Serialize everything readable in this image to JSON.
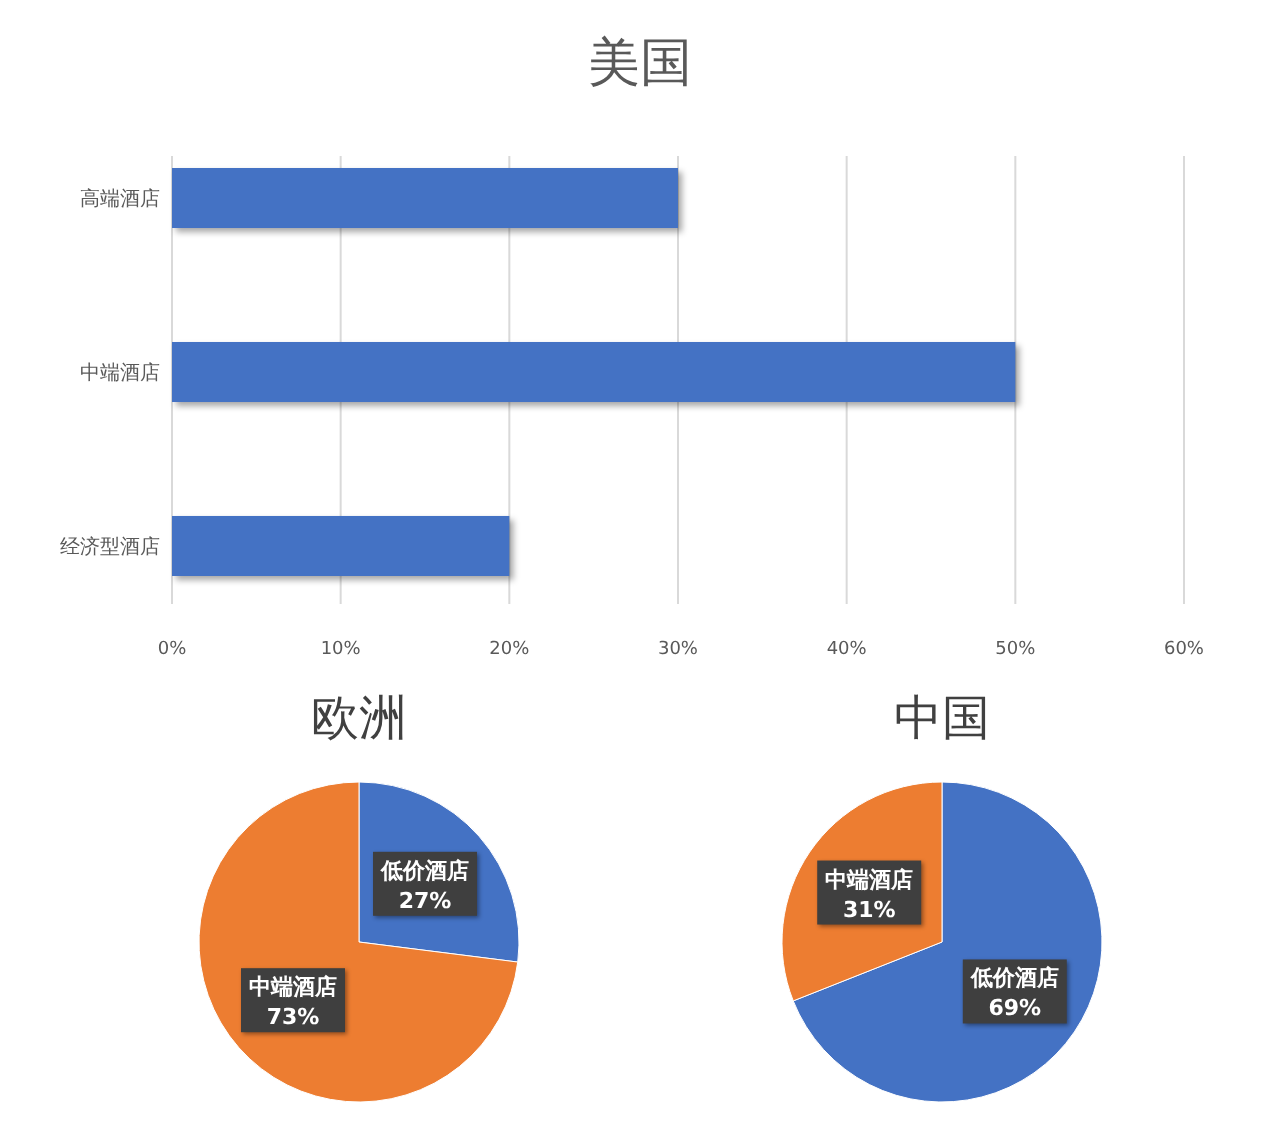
{
  "chart_data": [
    {
      "type": "bar",
      "orientation": "horizontal",
      "title": "美国",
      "categories": [
        "高端酒店",
        "中端酒店",
        "经济型酒店"
      ],
      "values": [
        30,
        50,
        20
      ],
      "color": "#4472c4",
      "xlim": [
        0,
        60
      ],
      "xticks": [
        {
          "value": 0,
          "label": "0%"
        },
        {
          "value": 10,
          "label": "10%"
        },
        {
          "value": 20,
          "label": "20%"
        },
        {
          "value": 30,
          "label": "30%"
        },
        {
          "value": 40,
          "label": "40%"
        },
        {
          "value": 50,
          "label": "50%"
        },
        {
          "value": 60,
          "label": "60%"
        }
      ],
      "grid": "x"
    },
    {
      "type": "pie",
      "title": "欧洲",
      "categories": [
        "低价酒店",
        "中端酒店"
      ],
      "values": [
        27,
        73
      ],
      "colors": [
        "#4472c4",
        "#ed7d31"
      ],
      "value_labels": [
        "27%",
        "73%"
      ]
    },
    {
      "type": "pie",
      "title": "中国",
      "categories": [
        "低价酒店",
        "中端酒店"
      ],
      "values": [
        69,
        31
      ],
      "colors": [
        "#4472c4",
        "#ed7d31"
      ],
      "value_labels": [
        "69%",
        "31%"
      ]
    }
  ]
}
